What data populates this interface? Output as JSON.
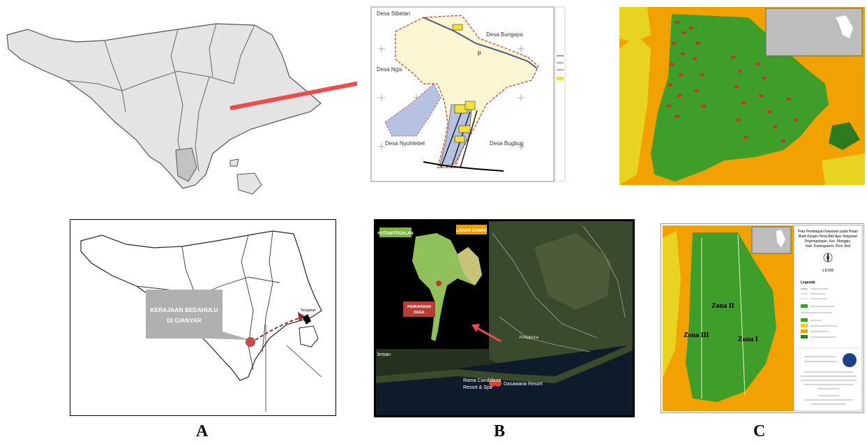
{
  "panel_labels": {
    "a": "A",
    "b": "B",
    "c": "C"
  },
  "top_middle_map": {
    "villages": {
      "sibetan": "Desa Sibetan",
      "bungaya": "Desa Bungaya",
      "ngis": "Desa Ngis",
      "nyuhtebel": "Desa Nyuhtebel",
      "bugbug": "Desa Bugbug"
    },
    "marker": "p"
  },
  "bottom_left_map": {
    "callout": "KERAJAAN BEDAHULU DI GIANYAR",
    "place": "Tenganan"
  },
  "bottom_middle_map": {
    "labels": {
      "forest": "HUTAN/TEGALAN",
      "rice": "LAHAN SAWAH",
      "settlement": "PEMUKIMAN DESA",
      "amlapura": "Amlapura",
      "leman": "leman",
      "resort1": "Rama Candidasa Resort & Spa",
      "resort2": "Dasawana Resort"
    }
  },
  "bottom_right_map": {
    "title_lines": [
      "Peta Pembagian Kawasan pada Hutan",
      "Bukit Kangin Desa Bali Aga Tenganan",
      "Pegringsingan, Kec. Manggis,",
      "Kab. Karangasem, Prov. Bali"
    ],
    "scale": "1:8.500",
    "legend_title": "Legenda",
    "zones": {
      "z1": "Zona I",
      "z2": "Zona II",
      "z3": "Zona III"
    }
  },
  "colors": {
    "forest_green": "#3f9e2a",
    "orange": "#f2a200",
    "yellow": "#e8d41f",
    "cream": "#fdf6d3",
    "lightblue": "#b5c2e2",
    "red_arrow": "#ef4b4b",
    "land_gray": "#e4e4e4"
  }
}
